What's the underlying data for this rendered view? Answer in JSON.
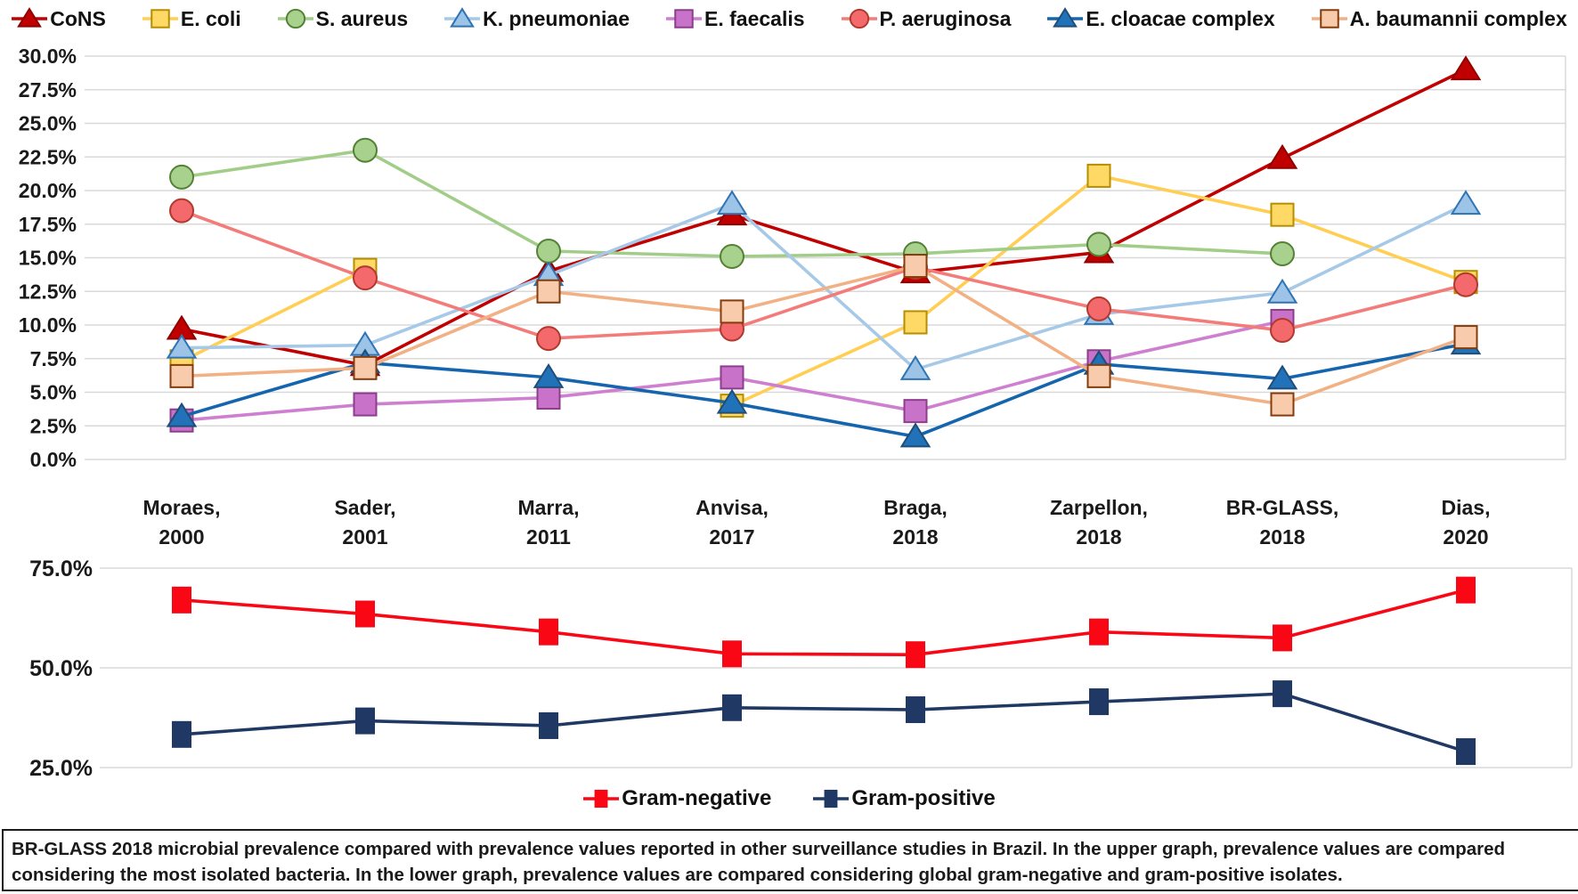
{
  "figure": {
    "caption": "BR-GLASS 2018 microbial prevalence compared with prevalence values reported in other surveillance studies in Brazil. In the upper graph, prevalence values are compared considering the most isolated bacteria. In the lower graph, prevalence values are compared considering global gram-negative and gram-positive isolates."
  },
  "colors": {
    "grid": "#D9D9D9",
    "text": "#1a1a1a",
    "background": "#ffffff"
  },
  "chart_data": [
    {
      "type": "line",
      "id": "upper",
      "categories": [
        [
          "Moraes,",
          "2000"
        ],
        [
          "Sader,",
          "2001"
        ],
        [
          "Marra,",
          "2011"
        ],
        [
          "Anvisa,",
          "2017"
        ],
        [
          "Braga,",
          "2018"
        ],
        [
          "Zarpellon,",
          "2018"
        ],
        [
          "BR-GLASS,",
          "2018"
        ],
        [
          "Dias,",
          "2020"
        ]
      ],
      "ylim": [
        0,
        30
      ],
      "ytick_step": 2.5,
      "ytick_labels": [
        "30.0%",
        "27.5%",
        "25.0%",
        "22.5%",
        "20.0%",
        "17.5%",
        "15.0%",
        "12.5%",
        "10.0%",
        "7.5%",
        "5.0%",
        "2.5%",
        "0.0%"
      ],
      "grid": true,
      "legend_position": "top",
      "series": [
        {
          "name": "CoNS",
          "marker": "triangle",
          "fill": "#C00000",
          "stroke": "#900000",
          "line": "#C00000",
          "values": [
            9.7,
            7.0,
            14.0,
            18.2,
            13.9,
            15.4,
            22.4,
            29.0
          ]
        },
        {
          "name": "E. coli",
          "marker": "square",
          "fill": "#FFD966",
          "stroke": "#B78E00",
          "line": "#FFCE53",
          "values": [
            7.3,
            14.1,
            null,
            4.0,
            10.2,
            21.1,
            18.2,
            13.2
          ]
        },
        {
          "name": "S. aureus",
          "marker": "circle",
          "fill": "#A9D18E",
          "stroke": "#548235",
          "line": "#A2CD88",
          "values": [
            21.0,
            23.0,
            15.5,
            15.1,
            15.3,
            16.0,
            15.3,
            null
          ]
        },
        {
          "name": "K. pneumoniae",
          "marker": "triangle",
          "fill": "#9DC3E6",
          "stroke": "#2E74B5",
          "line": "#A6C9E8",
          "values": [
            8.3,
            8.5,
            13.7,
            19.0,
            6.7,
            10.8,
            12.4,
            19.0
          ]
        },
        {
          "name": "E. faecalis",
          "marker": "square",
          "fill": "#C972C9",
          "stroke": "#8C3E8C",
          "line": "#CE7FD0",
          "values": [
            2.9,
            4.1,
            4.6,
            6.1,
            3.6,
            7.3,
            10.3,
            null
          ]
        },
        {
          "name": "P. aeruginosa",
          "marker": "circle",
          "fill": "#F4696B",
          "stroke": "#B03A2E",
          "line": "#F37B79",
          "values": [
            18.5,
            13.5,
            9.0,
            9.7,
            14.3,
            11.2,
            9.6,
            13.0
          ]
        },
        {
          "name": "E. cloacae complex",
          "marker": "triangle",
          "fill": "#2172B8",
          "stroke": "#1F4E79",
          "line": "#1565AE",
          "values": [
            3.2,
            7.2,
            6.1,
            4.2,
            1.7,
            7.1,
            6.0,
            8.6
          ]
        },
        {
          "name": "A. baumannii complex",
          "marker": "square",
          "fill": "#F8CBAD",
          "stroke": "#843C0C",
          "line": "#F2B185",
          "values": [
            6.2,
            6.8,
            12.5,
            11.0,
            14.4,
            6.2,
            4.1,
            9.1
          ]
        }
      ]
    },
    {
      "type": "line",
      "id": "lower",
      "categories": [
        [
          "Moraes,",
          "2000"
        ],
        [
          "Sader,",
          "2001"
        ],
        [
          "Marra,",
          "2011"
        ],
        [
          "Anvisa,",
          "2017"
        ],
        [
          "Braga,",
          "2018"
        ],
        [
          "Zarpellon,",
          "2018"
        ],
        [
          "BR-GLASS,",
          "2018"
        ],
        [
          "Dias,",
          "2020"
        ]
      ],
      "ylim": [
        25,
        75
      ],
      "ytick_step": 25,
      "ytick_labels": [
        "75.0%",
        "50.0%",
        "25.0%"
      ],
      "grid": true,
      "legend_position": "bottom",
      "series": [
        {
          "name": "Gram-negative",
          "marker": "vrect",
          "fill": "#F90714",
          "stroke": "#C00000",
          "line": "#F90714",
          "values": [
            67.0,
            63.5,
            59.0,
            53.5,
            53.3,
            59.0,
            57.5,
            69.5
          ]
        },
        {
          "name": "Gram-positive",
          "marker": "vrect",
          "fill": "#1F3864",
          "stroke": "#132档644",
          "line": "#1F3864",
          "values": [
            33.3,
            36.7,
            35.5,
            40.0,
            39.5,
            41.5,
            43.5,
            29.0
          ]
        }
      ]
    }
  ]
}
